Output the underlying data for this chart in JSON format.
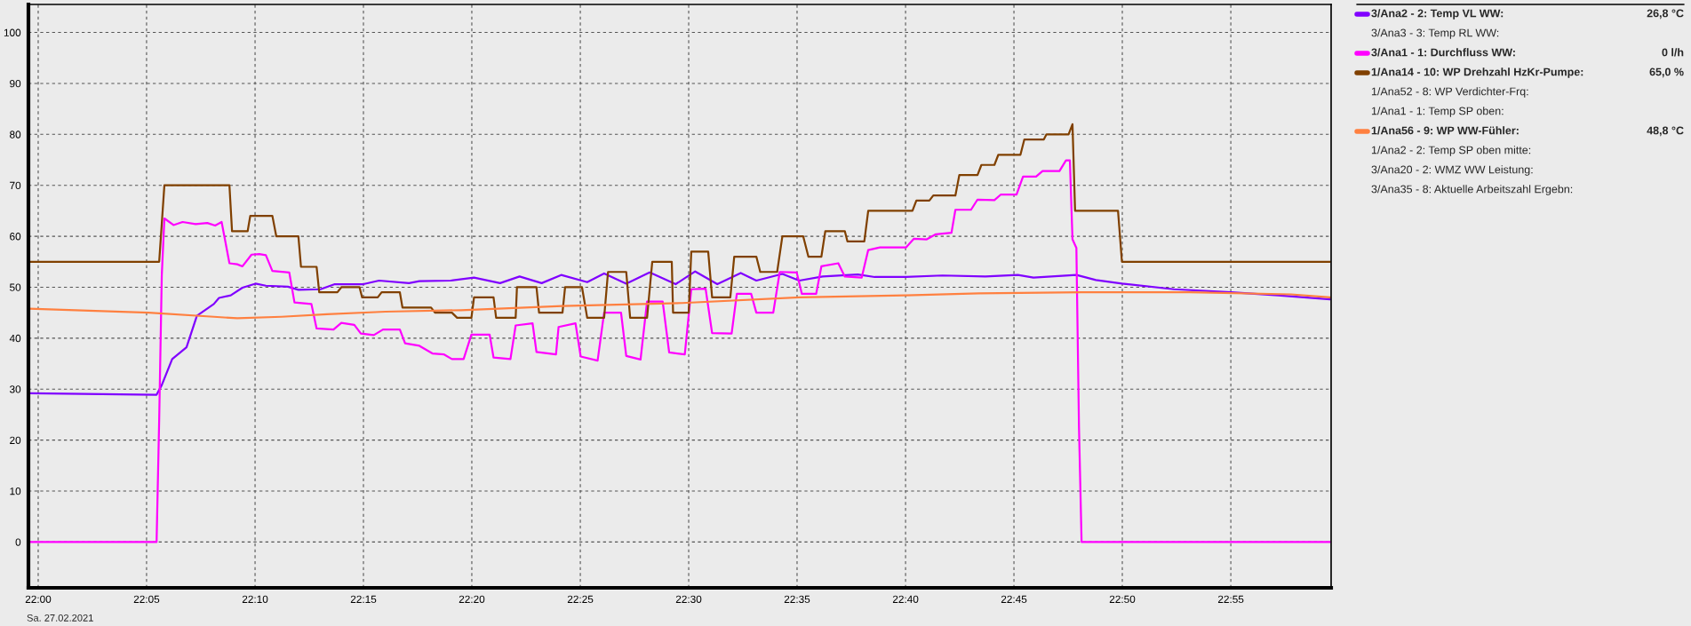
{
  "chart_data": {
    "type": "line",
    "xlim": [
      21.9925,
      22.9938
    ],
    "ylim": [
      -9.0,
      105.5
    ],
    "xticks": [
      {
        "value": 22,
        "label": "22:00"
      },
      {
        "value": 22.0833,
        "label": "22:05"
      },
      {
        "value": 22.1667,
        "label": "22:10"
      },
      {
        "value": 22.25,
        "label": "22:15"
      },
      {
        "value": 22.3333,
        "label": "22:20"
      },
      {
        "value": 22.4167,
        "label": "22:25"
      },
      {
        "value": 22.5,
        "label": "22:30"
      },
      {
        "value": 22.5833,
        "label": "22:35"
      },
      {
        "value": 22.6667,
        "label": "22:40"
      },
      {
        "value": 22.75,
        "label": "22:45"
      },
      {
        "value": 22.8333,
        "label": "22:50"
      },
      {
        "value": 22.9167,
        "label": "22:55"
      }
    ],
    "yticks": [
      0,
      10,
      20,
      30,
      40,
      50,
      60,
      70,
      80,
      90,
      100
    ],
    "grid": true,
    "legend": "right",
    "annotations": [
      "Sa. 27.02.2021",
      "26,8 °C",
      "0 l/h",
      "65,0 %",
      "48,8 °C"
    ],
    "series": [
      {
        "name": "3/Ana2 - 2: Temp VL WW:",
        "color": "#8000ff",
        "x": [
          21.993,
          22.091,
          22.095,
          22.103,
          22.114,
          22.122,
          22.135,
          22.139,
          22.148,
          22.157,
          22.167,
          22.175,
          22.192,
          22.2,
          22.217,
          22.228,
          22.25,
          22.262,
          22.285,
          22.293,
          22.317,
          22.335,
          22.355,
          22.37,
          22.387,
          22.402,
          22.422,
          22.435,
          22.452,
          22.47,
          22.49,
          22.505,
          22.522,
          22.54,
          22.552,
          22.572,
          22.585,
          22.603,
          22.63,
          22.643,
          22.667,
          22.695,
          22.728,
          22.753,
          22.765,
          22.798,
          22.813,
          22.833,
          22.873,
          22.917,
          22.953,
          22.993
        ],
        "values": [
          29.2,
          28.9,
          30.8,
          35.9,
          38.2,
          44.4,
          46.7,
          47.9,
          48.4,
          49.9,
          50.7,
          50.3,
          50.1,
          49.5,
          49.6,
          50.6,
          50.6,
          51.3,
          50.8,
          51.2,
          51.3,
          51.9,
          50.8,
          52.1,
          50.8,
          52.4,
          51.0,
          52.7,
          50.7,
          52.9,
          50.6,
          53.1,
          50.6,
          52.8,
          51.3,
          52.6,
          51.3,
          52.1,
          52.5,
          52.0,
          52.0,
          52.3,
          52.1,
          52.4,
          51.9,
          52.4,
          51.4,
          50.7,
          49.6,
          49.0,
          48.4,
          47.6
        ]
      },
      {
        "name": "3/Ana3 - 3: Temp RL WW:"
      },
      {
        "name": "3/Ana1 - 1: Durchfluss WW:",
        "color": "#ff00ff",
        "x": [
          21.993,
          22.091,
          22.093,
          22.095,
          22.097,
          22.104,
          22.111,
          22.121,
          22.13,
          22.136,
          22.141,
          22.147,
          22.153,
          22.157,
          22.164,
          22.17,
          22.175,
          22.18,
          22.193,
          22.197,
          22.21,
          22.214,
          22.227,
          22.233,
          22.243,
          22.248,
          22.258,
          22.265,
          22.278,
          22.282,
          22.293,
          22.303,
          22.312,
          22.318,
          22.327,
          22.333,
          22.347,
          22.35,
          22.363,
          22.367,
          22.38,
          22.383,
          22.398,
          22.4,
          22.413,
          22.417,
          22.43,
          22.435,
          22.448,
          22.452,
          22.463,
          22.468,
          22.48,
          22.485,
          22.497,
          22.502,
          22.513,
          22.518,
          22.533,
          22.537,
          22.548,
          22.552,
          22.565,
          22.57,
          22.583,
          22.587,
          22.598,
          22.602,
          22.615,
          22.62,
          22.633,
          22.638,
          22.647,
          22.667,
          22.673,
          22.683,
          22.69,
          22.702,
          22.705,
          22.717,
          22.722,
          22.735,
          22.74,
          22.752,
          22.757,
          22.767,
          22.772,
          22.785,
          22.79,
          22.793,
          22.795,
          22.798,
          22.8,
          22.802,
          22.993
        ],
        "values": [
          0,
          0,
          23.9,
          52.4,
          63.5,
          62.2,
          62.8,
          62.4,
          62.6,
          62.1,
          62.8,
          54.7,
          54.5,
          54.1,
          56.4,
          56.5,
          56.3,
          53.2,
          52.9,
          47.0,
          46.7,
          41.9,
          41.7,
          43.0,
          42.6,
          40.9,
          40.6,
          41.7,
          41.7,
          39.0,
          38.5,
          37.0,
          36.8,
          35.9,
          35.9,
          40.7,
          40.7,
          36.2,
          35.9,
          42.5,
          42.9,
          37.3,
          36.8,
          42.2,
          42.9,
          36.4,
          35.6,
          45.0,
          45.0,
          36.5,
          35.8,
          47.2,
          47.2,
          37.2,
          36.8,
          49.6,
          49.7,
          41.0,
          40.9,
          48.7,
          48.7,
          45.0,
          45.0,
          53.0,
          52.9,
          48.7,
          48.7,
          54.1,
          54.7,
          52.1,
          51.9,
          57.3,
          57.8,
          57.8,
          59.5,
          59.4,
          60.4,
          60.7,
          65.2,
          65.2,
          67.2,
          67.1,
          68.2,
          68.2,
          71.7,
          71.7,
          72.8,
          72.8,
          74.9,
          74.9,
          59.4,
          57.7,
          22.5,
          0,
          0
        ]
      },
      {
        "name": "1/Ana14 - 10: WP Drehzahl HzKr-Pumpe:",
        "color": "#804000",
        "x": [
          21.993,
          22.093,
          22.097,
          22.147,
          22.149,
          22.161,
          22.163,
          22.18,
          22.183,
          22.2,
          22.202,
          22.214,
          22.216,
          22.23,
          22.233,
          22.247,
          22.249,
          22.261,
          22.264,
          22.278,
          22.28,
          22.302,
          22.305,
          22.318,
          22.322,
          22.333,
          22.335,
          22.35,
          22.352,
          22.367,
          22.368,
          22.383,
          22.385,
          22.403,
          22.405,
          22.418,
          22.422,
          22.435,
          22.438,
          22.452,
          22.455,
          22.468,
          22.472,
          22.487,
          22.488,
          22.5,
          22.502,
          22.515,
          22.518,
          22.532,
          22.535,
          22.552,
          22.555,
          22.568,
          22.572,
          22.588,
          22.592,
          22.602,
          22.605,
          22.62,
          22.622,
          22.635,
          22.638,
          22.672,
          22.675,
          22.685,
          22.688,
          22.705,
          22.708,
          22.722,
          22.725,
          22.735,
          22.738,
          22.755,
          22.758,
          22.773,
          22.775,
          22.792,
          22.795,
          22.797,
          22.83,
          22.833,
          22.993
        ],
        "values": [
          55,
          55,
          70,
          70,
          61,
          61,
          64,
          64,
          60,
          60,
          54,
          54,
          49,
          49,
          50,
          50,
          48,
          48,
          49,
          49,
          46,
          46,
          45,
          45,
          44,
          44,
          48,
          48,
          44,
          44,
          50,
          50,
          45,
          45,
          50,
          50,
          44,
          44,
          53,
          53,
          44,
          44,
          55,
          55,
          45,
          45,
          57,
          57,
          48,
          48,
          56,
          56,
          53,
          53,
          60,
          60,
          56,
          56,
          61,
          61,
          59,
          59,
          65,
          65,
          67,
          67,
          68,
          68,
          72,
          72,
          74,
          74,
          76,
          76,
          79,
          79,
          80,
          80,
          82,
          65,
          65,
          55,
          55
        ]
      },
      {
        "name": "1/Ana52 - 8: WP Verdichter-Frq:"
      },
      {
        "name": "1/Ana1 - 1: Temp SP oben:"
      },
      {
        "name": "1/Ana56 - 9: WP WW-Fühler:",
        "color": "#ff8040",
        "x": [
          21.993,
          22.085,
          22.135,
          22.153,
          22.187,
          22.222,
          22.267,
          22.325,
          22.403,
          22.495,
          22.585,
          22.667,
          22.723,
          22.802,
          22.885,
          22.963,
          22.993
        ],
        "values": [
          45.8,
          45.0,
          44.2,
          43.9,
          44.2,
          44.7,
          45.2,
          45.5,
          46.3,
          46.9,
          48.0,
          48.4,
          48.8,
          49.0,
          49.0,
          48.6,
          48.0
        ]
      },
      {
        "name": "1/Ana2 - 2: Temp SP oben mitte:"
      },
      {
        "name": "3/Ana20 - 2: WMZ WW Leistung:"
      },
      {
        "name": "3/Ana35 - 8: Aktuelle Arbeitszahl Ergebn:"
      }
    ]
  }
}
